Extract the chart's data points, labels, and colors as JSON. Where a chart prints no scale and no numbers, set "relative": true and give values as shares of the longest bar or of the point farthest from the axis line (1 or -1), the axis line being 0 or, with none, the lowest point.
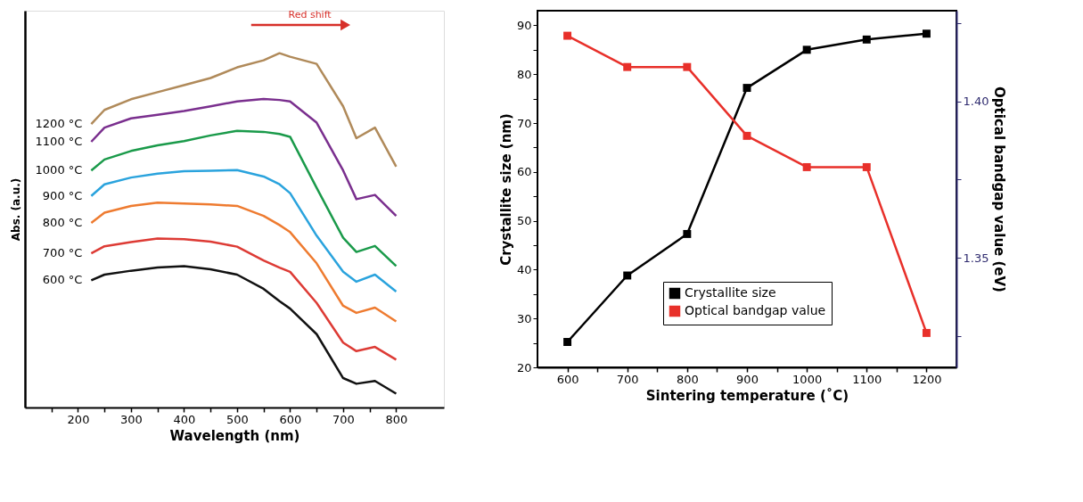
{
  "chart_data": [
    {
      "type": "line",
      "xlabel": "Wavelength (nm)",
      "ylabel": "Abs. (a.u.)",
      "relative": true,
      "tick_labels": "x",
      "xlim": [
        100,
        890
      ],
      "xticks": [
        {
          "value": 150,
          "label": null
        },
        200,
        {
          "value": 250,
          "label": null
        },
        300,
        {
          "value": 350,
          "label": null
        },
        400,
        {
          "value": 450,
          "label": null
        },
        500,
        {
          "value": 550,
          "label": null
        },
        600,
        {
          "value": 650,
          "label": null
        },
        700,
        {
          "value": 750,
          "label": null
        },
        800
      ],
      "x": [
        225,
        250,
        300,
        350,
        400,
        450,
        500,
        550,
        580,
        600,
        650,
        700,
        725,
        760,
        800
      ],
      "annotations": [
        "Red shift"
      ],
      "series": [
        {
          "name": "1200 °C",
          "color": "#b08a5a",
          "values": [
            0.8,
            0.84,
            0.87,
            0.89,
            0.91,
            0.93,
            0.96,
            0.98,
            1.0,
            0.99,
            0.97,
            0.85,
            0.76,
            0.79,
            0.68
          ]
        },
        {
          "name": "1100 °C",
          "color": "#7a2f8e",
          "values": [
            0.75,
            0.79,
            0.816,
            0.826,
            0.837,
            0.85,
            0.864,
            0.871,
            0.868,
            0.864,
            0.804,
            0.669,
            0.588,
            0.6,
            0.541
          ]
        },
        {
          "name": "1000 °C",
          "color": "#1a9a4a",
          "values": [
            0.669,
            0.7,
            0.724,
            0.74,
            0.752,
            0.768,
            0.781,
            0.778,
            0.772,
            0.764,
            0.62,
            0.479,
            0.439,
            0.456,
            0.399
          ]
        },
        {
          "name": "900 °C",
          "color": "#2aa3dd",
          "values": [
            0.597,
            0.63,
            0.649,
            0.66,
            0.667,
            0.668,
            0.67,
            0.652,
            0.63,
            0.605,
            0.485,
            0.383,
            0.355,
            0.375,
            0.327
          ]
        },
        {
          "name": "800 °C",
          "color": "#ee7b30",
          "values": [
            0.521,
            0.55,
            0.569,
            0.578,
            0.576,
            0.573,
            0.569,
            0.541,
            0.515,
            0.495,
            0.407,
            0.287,
            0.267,
            0.282,
            0.243
          ]
        },
        {
          "name": "700 °C",
          "color": "#dd3b35",
          "values": [
            0.435,
            0.455,
            0.467,
            0.477,
            0.475,
            0.468,
            0.454,
            0.415,
            0.395,
            0.383,
            0.295,
            0.183,
            0.159,
            0.171,
            0.135
          ]
        },
        {
          "name": "600 °C",
          "color": "#111111",
          "values": [
            0.359,
            0.375,
            0.386,
            0.395,
            0.399,
            0.39,
            0.375,
            0.335,
            0.3,
            0.279,
            0.207,
            0.083,
            0.067,
            0.075,
            0.039
          ]
        }
      ]
    },
    {
      "type": "line",
      "xlabel": "Sintering temperature (˚C)",
      "ylabel": "Crystallite size (nm)",
      "y2label": "Optical bandgap value (eV)",
      "x": [
        600,
        700,
        800,
        900,
        1000,
        1100,
        1200
      ],
      "xlim": [
        550,
        1250
      ],
      "xticks": [
        600,
        {
          "value": 650,
          "label": null
        },
        700,
        {
          "value": 750,
          "label": null
        },
        800,
        {
          "value": 850,
          "label": null
        },
        900,
        {
          "value": 950,
          "label": null
        },
        1000,
        {
          "value": 1050,
          "label": null
        },
        1100,
        {
          "value": 1150,
          "label": null
        },
        1200
      ],
      "ylim": [
        20,
        93
      ],
      "yticks": [
        20,
        {
          "value": 25,
          "label": null
        },
        30,
        {
          "value": 35,
          "label": null
        },
        40,
        {
          "value": 45,
          "label": null
        },
        50,
        {
          "value": 55,
          "label": null
        },
        60,
        {
          "value": 65,
          "label": null
        },
        70,
        {
          "value": 75,
          "label": null
        },
        80,
        {
          "value": 85,
          "label": null
        },
        90
      ],
      "y2lim": [
        1.315,
        1.429
      ],
      "y2ticks": [
        {
          "value": 1.325,
          "label": null
        },
        {
          "value": 1.35,
          "label": "1.35"
        },
        {
          "value": 1.375,
          "label": null
        },
        {
          "value": 1.4,
          "label": "1.40"
        },
        {
          "value": 1.425,
          "label": null
        }
      ],
      "marker": "square",
      "legend": "bottom",
      "series": [
        {
          "name": "Crystallite size",
          "color": "#000000",
          "values": [
            25.2,
            38.8,
            47.3,
            77.2,
            85.0,
            87.1,
            88.3
          ]
        },
        {
          "name": "Optical bandgap value",
          "color": "#e8302a",
          "axis": "y2",
          "values": [
            1.421,
            1.411,
            1.411,
            1.389,
            1.379,
            1.379,
            1.326
          ]
        }
      ]
    }
  ]
}
